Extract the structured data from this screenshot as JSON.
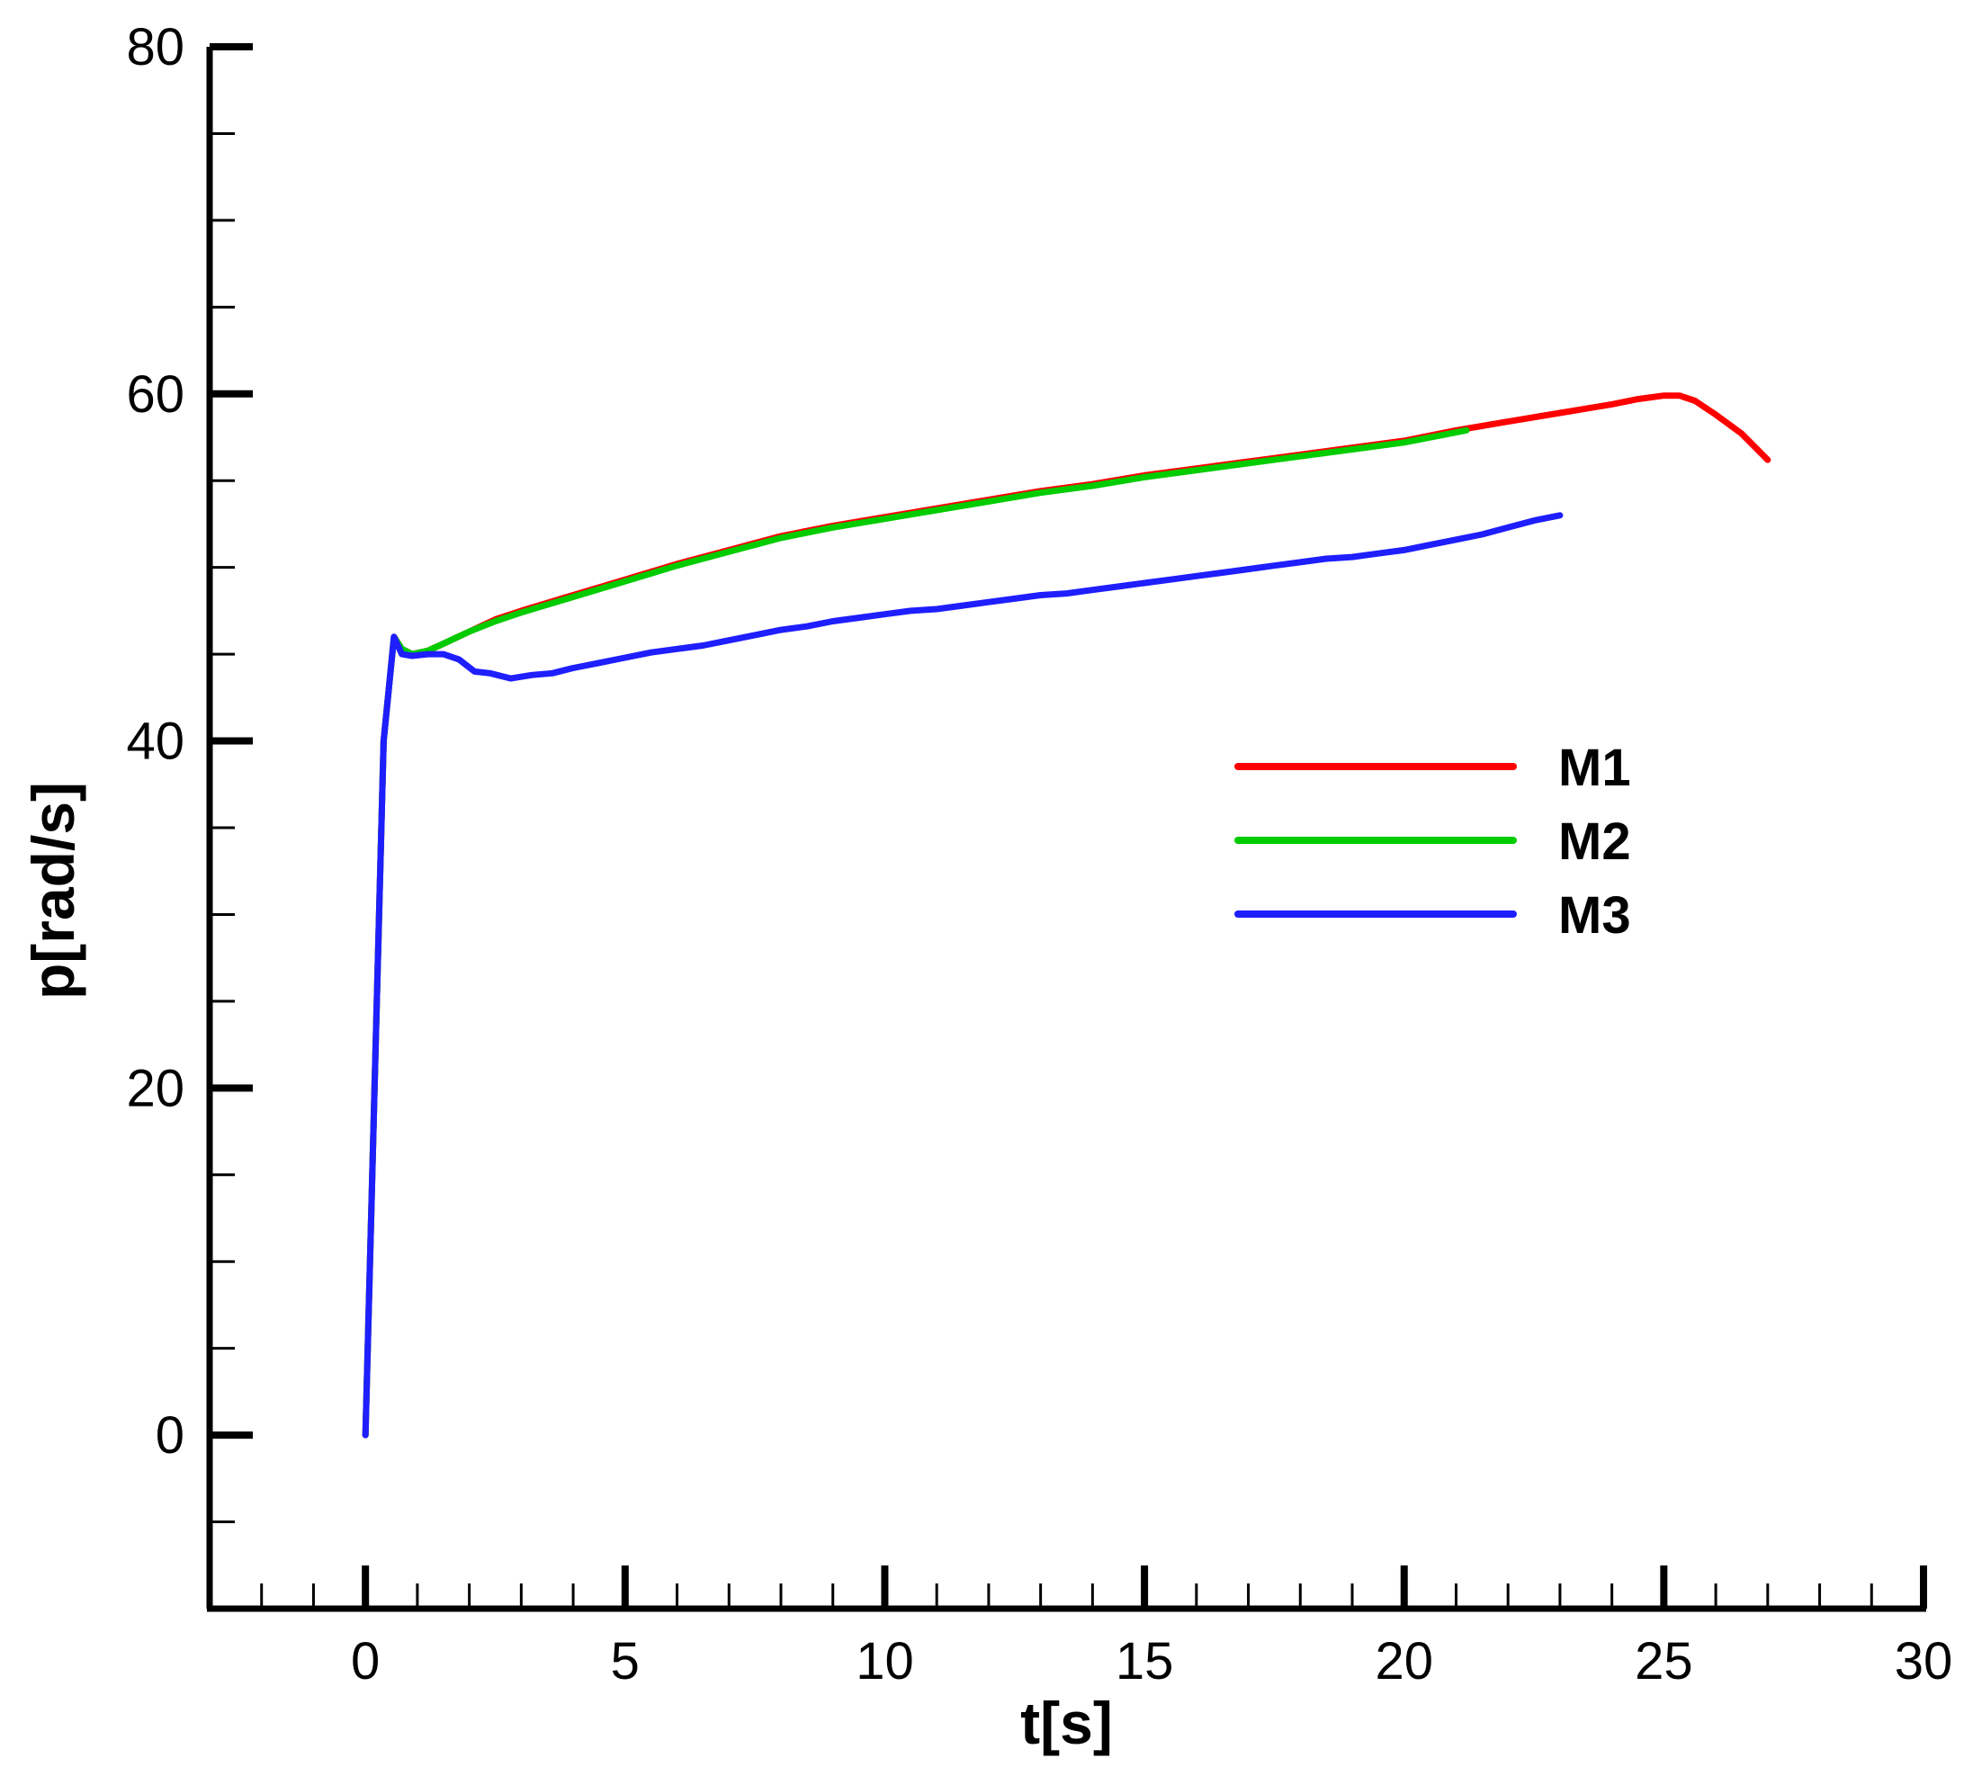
{
  "chart_data": {
    "type": "line",
    "xlabel": "t[s]",
    "ylabel": "p[rad/s]",
    "xlim": [
      -3,
      30
    ],
    "ylim": [
      -10,
      80
    ],
    "x_ticks": [
      0,
      5,
      10,
      15,
      20,
      25,
      30
    ],
    "y_ticks": [
      0,
      20,
      40,
      60,
      80
    ],
    "x_minor_step": 1,
    "y_minor_step": 5,
    "grid": false,
    "legend_position": "right-middle",
    "series": [
      {
        "name": "M1",
        "color": "#ff0000",
        "x": [
          0,
          0.35,
          0.55,
          0.7,
          0.9,
          1.2,
          1.5,
          2,
          2.5,
          3,
          4,
          5,
          6,
          7,
          8,
          9,
          10,
          11,
          12,
          13,
          14,
          15,
          16,
          17,
          18,
          19,
          20,
          21,
          22,
          23,
          24,
          24.5,
          25,
          25.3,
          25.6,
          26,
          26.5,
          27
        ],
        "y": [
          0,
          40,
          46,
          45.3,
          45,
          45.2,
          45.6,
          46.3,
          47,
          47.5,
          48.4,
          49.3,
          50.2,
          51,
          51.8,
          52.4,
          52.9,
          53.4,
          53.9,
          54.4,
          54.8,
          55.3,
          55.7,
          56.1,
          56.5,
          56.9,
          57.3,
          57.9,
          58.4,
          58.9,
          59.4,
          59.7,
          59.9,
          59.9,
          59.6,
          58.8,
          57.7,
          56.2
        ]
      },
      {
        "name": "M2",
        "color": "#00cc00",
        "x": [
          0,
          0.35,
          0.55,
          0.7,
          0.9,
          1.2,
          1.5,
          2,
          2.5,
          3,
          4,
          5,
          6,
          7,
          8,
          9,
          10,
          11,
          12,
          13,
          14,
          15,
          16,
          17,
          18,
          19,
          20,
          21.2
        ],
        "y": [
          0,
          40,
          46,
          45.3,
          45,
          45.2,
          45.6,
          46.3,
          46.9,
          47.4,
          48.3,
          49.2,
          50.1,
          50.9,
          51.7,
          52.3,
          52.8,
          53.3,
          53.8,
          54.3,
          54.7,
          55.2,
          55.6,
          56,
          56.4,
          56.8,
          57.2,
          57.9
        ]
      },
      {
        "name": "M3",
        "color": "#1e1eff",
        "x": [
          0,
          0.35,
          0.55,
          0.7,
          0.9,
          1.2,
          1.5,
          1.8,
          2.1,
          2.4,
          2.8,
          3.2,
          3.6,
          4,
          4.5,
          5,
          5.5,
          6,
          6.5,
          7,
          7.5,
          8,
          8.5,
          9,
          9.5,
          10,
          10.5,
          11,
          11.5,
          12,
          12.5,
          13,
          13.5,
          14,
          14.5,
          15,
          15.5,
          16,
          16.5,
          17,
          17.5,
          18,
          18.5,
          19,
          19.5,
          20,
          20.5,
          21,
          21.5,
          22,
          22.5,
          23
        ],
        "y": [
          0,
          40,
          46,
          45,
          44.9,
          45,
          45,
          44.7,
          44,
          43.9,
          43.6,
          43.8,
          43.9,
          44.2,
          44.5,
          44.8,
          45.1,
          45.3,
          45.5,
          45.8,
          46.1,
          46.4,
          46.6,
          46.9,
          47.1,
          47.3,
          47.5,
          47.6,
          47.8,
          48,
          48.2,
          48.4,
          48.5,
          48.7,
          48.9,
          49.1,
          49.3,
          49.5,
          49.7,
          49.9,
          50.1,
          50.3,
          50.5,
          50.6,
          50.8,
          51,
          51.3,
          51.6,
          51.9,
          52.3,
          52.7,
          53
        ]
      }
    ]
  }
}
